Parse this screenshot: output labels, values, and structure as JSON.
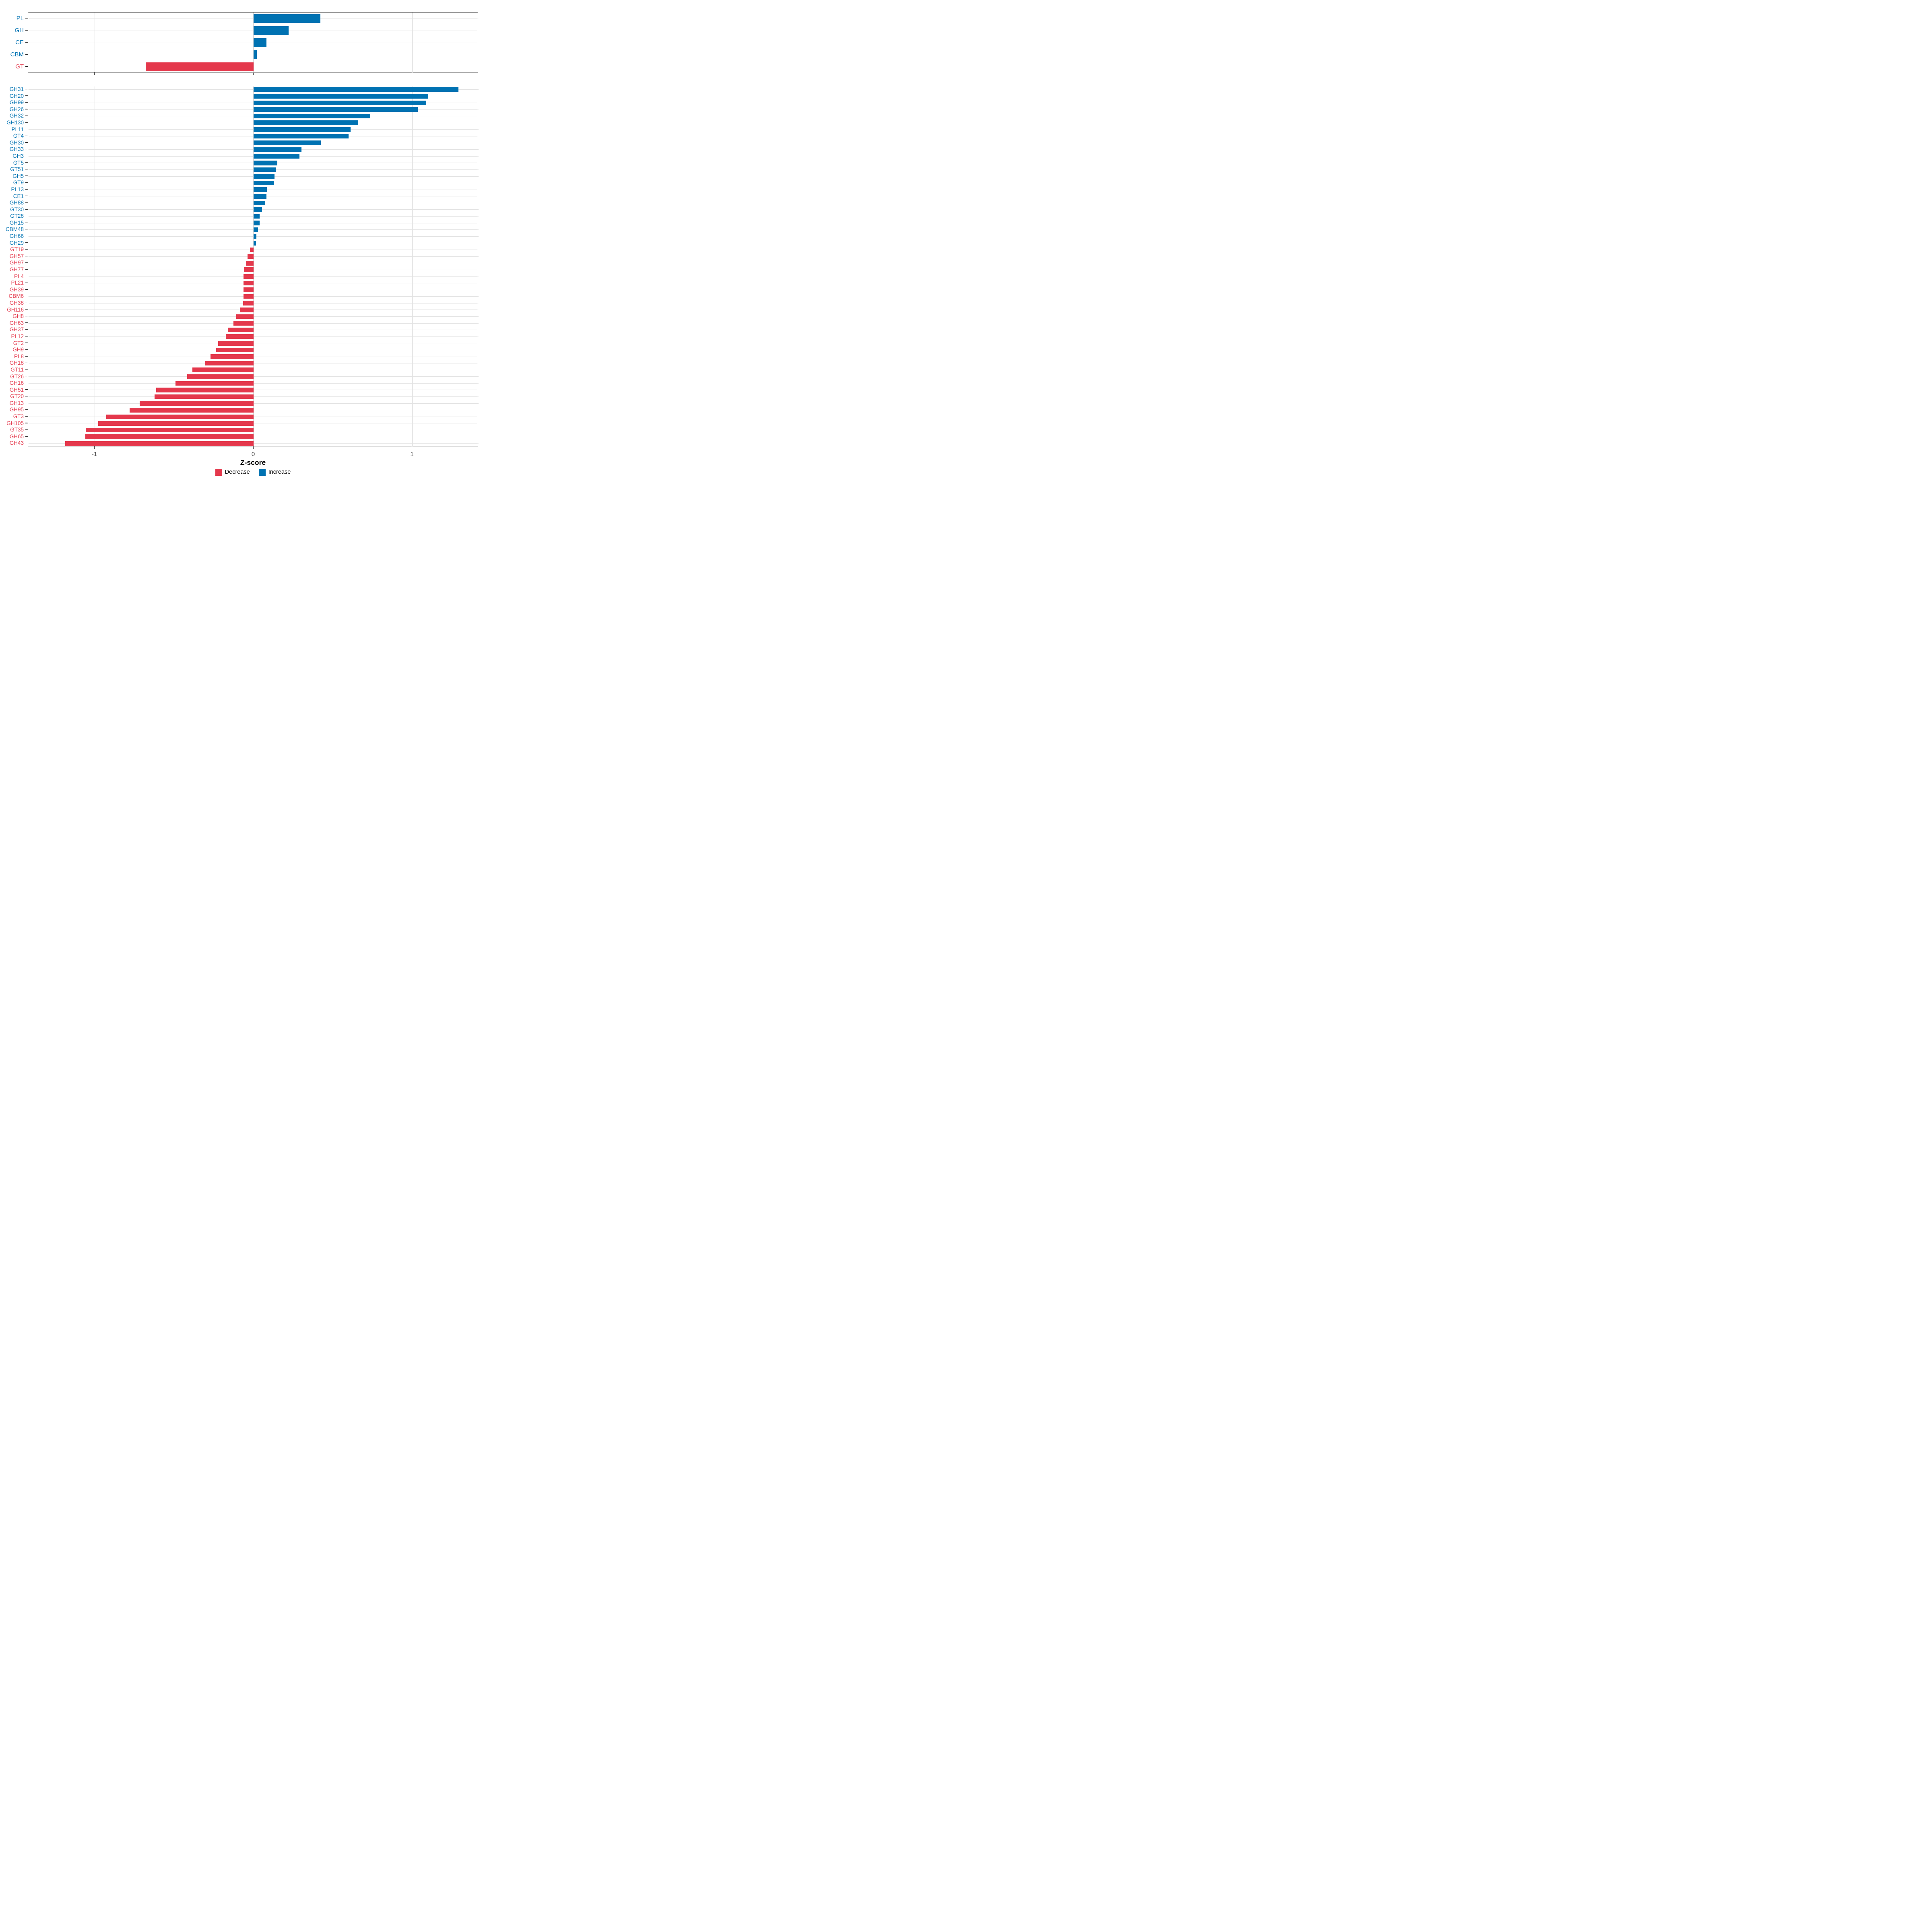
{
  "chart_data": {
    "type": "bar",
    "orientation": "horizontal",
    "title": "",
    "xlabel": "Z-score",
    "ylabel": "",
    "xlim": [
      -1.42,
      1.42
    ],
    "x_ticks": [
      "-1",
      "0",
      "1"
    ],
    "x_tick_values": [
      -1,
      0,
      1
    ],
    "grid": "on",
    "legend_position": "bottom",
    "colors": {
      "increase": "#0072B2",
      "decrease": "#E4384C",
      "grid_h": "#e2e2e2",
      "grid_v": "#dcdcdc",
      "border": "#1a1a1a",
      "axis_text": "#4d4d4d"
    },
    "legend": [
      {
        "label": "Decrease",
        "color_key": "decrease"
      },
      {
        "label": "Increase",
        "color_key": "increase"
      }
    ],
    "panels": [
      {
        "name": "cazyme-classes",
        "categories": [
          "PL",
          "GH",
          "CE",
          "CBM",
          "GT"
        ],
        "values": [
          0.42,
          0.22,
          0.08,
          0.02,
          -0.68
        ]
      },
      {
        "name": "cazyme-families",
        "categories": [
          "GH31",
          "GH20",
          "GH99",
          "GH26",
          "GH32",
          "GH130",
          "PL11",
          "GT4",
          "GH30",
          "GH33",
          "GH3",
          "GT5",
          "GT51",
          "GH5",
          "GT9",
          "PL13",
          "CE1",
          "GH88",
          "GT30",
          "GT28",
          "GH15",
          "CBM48",
          "GH66",
          "GH29",
          "GT19",
          "GH57",
          "GH97",
          "GH77",
          "PL4",
          "PL21",
          "GH39",
          "CBM6",
          "GH38",
          "GH116",
          "GH8",
          "GH63",
          "GH37",
          "PL12",
          "GT2",
          "GH9",
          "PL8",
          "GH18",
          "GT11",
          "GT26",
          "GH16",
          "GH51",
          "GT20",
          "GH13",
          "GH95",
          "GT3",
          "GH105",
          "GT35",
          "GH65",
          "GH43"
        ],
        "values": [
          1.29,
          1.1,
          1.087,
          1.034,
          0.735,
          0.658,
          0.612,
          0.598,
          0.424,
          0.302,
          0.29,
          0.15,
          0.139,
          0.133,
          0.128,
          0.084,
          0.081,
          0.074,
          0.053,
          0.039,
          0.037,
          0.028,
          0.017,
          0.015,
          -0.023,
          -0.039,
          -0.048,
          -0.062,
          -0.063,
          -0.063,
          -0.064,
          -0.064,
          -0.065,
          -0.086,
          -0.11,
          -0.128,
          -0.163,
          -0.176,
          -0.224,
          -0.236,
          -0.272,
          -0.303,
          -0.385,
          -0.419,
          -0.491,
          -0.614,
          -0.624,
          -0.717,
          -0.781,
          -0.929,
          -0.978,
          -1.058,
          -1.059,
          -1.187
        ]
      }
    ]
  }
}
